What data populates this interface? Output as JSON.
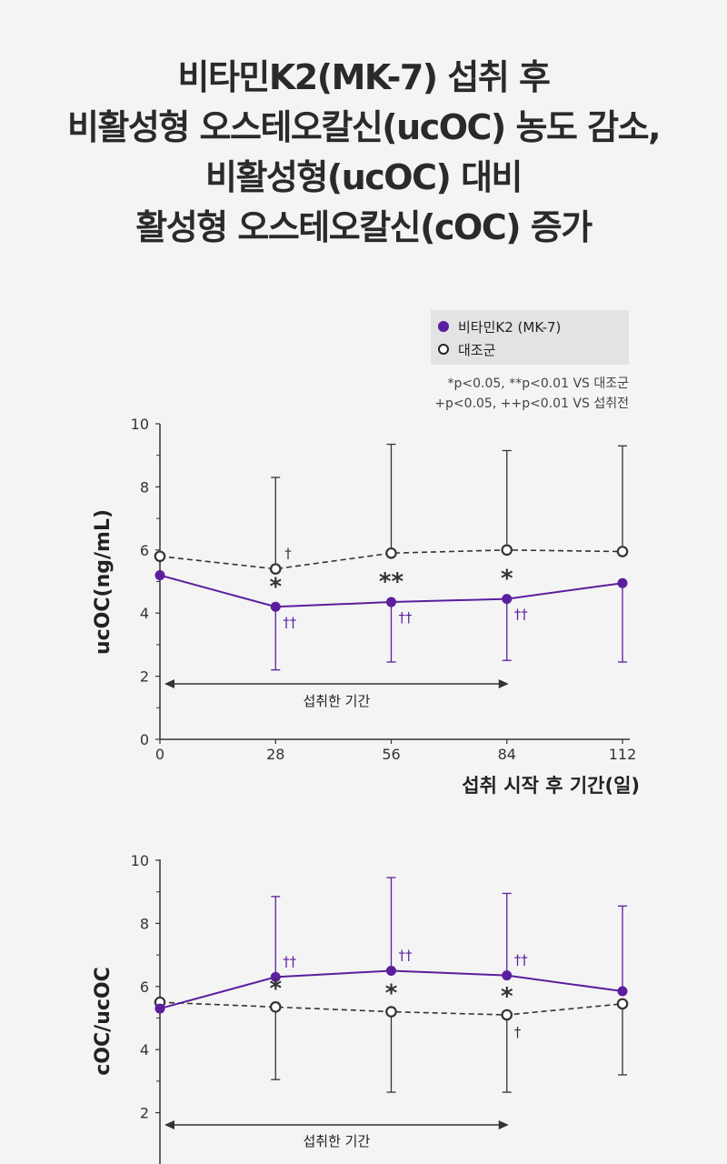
{
  "headline": {
    "lines": [
      "비타민K2(MK-7) 섭취 후",
      "비활성형 오스테오칼신(ucOC) 농도 감소,",
      "비활성형(ucOC) 대비",
      "활성형 오스테오칼신(cOC) 증가"
    ]
  },
  "legend": {
    "items": [
      "비타민K2 (MK-7)",
      "대조군"
    ]
  },
  "significance": {
    "line1": "*p<0.05, **p<0.01 VS 대조군",
    "line2": "+p<0.05, ++p<0.01 VS 섭취전"
  },
  "colors": {
    "treatment": "#5b1e9e",
    "control": "#333333"
  },
  "chart_data": [
    {
      "type": "line",
      "ylabel": "ucOC(ng/mL)",
      "xlabel": "섭취 시작 후 기간(일)",
      "x": [
        0,
        28,
        56,
        84,
        112
      ],
      "x_tick_labels": [
        "0",
        "28",
        "56",
        "84",
        "112"
      ],
      "ylim": [
        0,
        10
      ],
      "y_tick_labels": [
        "0",
        "2",
        "4",
        "6",
        "8",
        "10"
      ],
      "series": [
        {
          "name": "비타민K2 (MK-7)",
          "values": [
            5.2,
            4.2,
            4.35,
            4.45,
            4.95
          ],
          "error_low": [
            null,
            2.2,
            2.45,
            2.5,
            2.45
          ],
          "markers": [
            null,
            "††",
            "††",
            "††",
            null
          ]
        },
        {
          "name": "대조군",
          "values": [
            5.8,
            5.4,
            5.9,
            6.0,
            5.95
          ],
          "error_high": [
            null,
            8.3,
            9.35,
            9.15,
            9.3
          ],
          "markers": [
            null,
            "†",
            null,
            null,
            null
          ]
        }
      ],
      "stars": [
        null,
        "*",
        "**",
        "*",
        null
      ],
      "intake_period": {
        "label": "섭취한 기간",
        "from": 0,
        "to": 84
      }
    },
    {
      "type": "line",
      "ylabel": "cOC/ucOC",
      "x": [
        0,
        28,
        56,
        84,
        112
      ],
      "ylim": [
        0,
        10
      ],
      "y_tick_labels": [
        "2",
        "4",
        "6",
        "8",
        "10"
      ],
      "series": [
        {
          "name": "비타민K2 (MK-7)",
          "values": [
            5.3,
            6.3,
            6.5,
            6.35,
            5.85
          ],
          "error_high": [
            null,
            8.85,
            9.45,
            8.95,
            8.55
          ],
          "markers": [
            null,
            "††",
            "††",
            "††",
            null
          ]
        },
        {
          "name": "대조군",
          "values": [
            5.5,
            5.35,
            5.2,
            5.1,
            5.45
          ],
          "error_low": [
            null,
            3.05,
            2.65,
            2.65,
            3.2
          ],
          "markers": [
            null,
            null,
            null,
            "†",
            null
          ]
        }
      ],
      "stars": [
        null,
        "*",
        "*",
        "*",
        null
      ],
      "intake_period": {
        "label": "섭취한 기간",
        "from": 0,
        "to": 84
      }
    }
  ]
}
